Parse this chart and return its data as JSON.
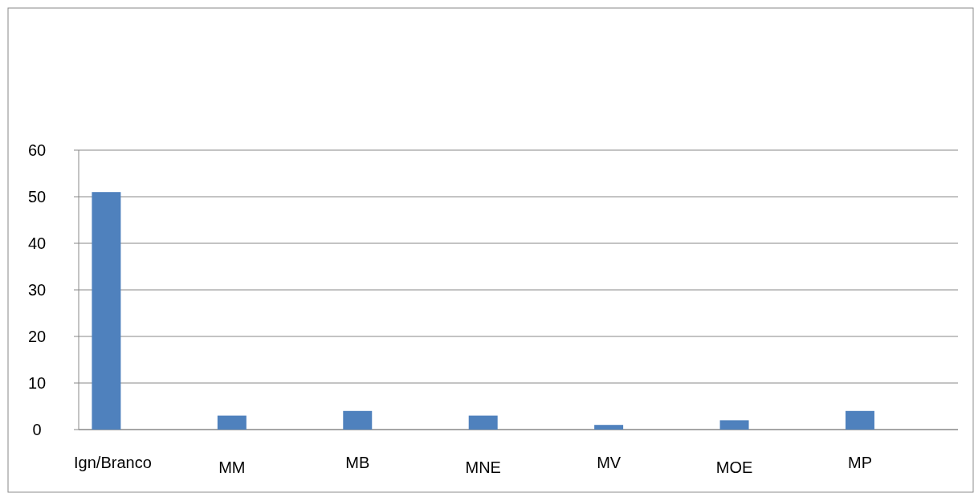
{
  "chart_data": {
    "type": "bar",
    "categories": [
      "Ign/Branco",
      "MM",
      "MB",
      "MNE",
      "MV",
      "MOE",
      "MP"
    ],
    "values": [
      51,
      3,
      4,
      3,
      1,
      2,
      4
    ],
    "color": "#4f81bd",
    "ylim": [
      0,
      60
    ],
    "yticks": [
      0,
      10,
      20,
      30,
      40,
      50,
      60
    ],
    "grid": "y"
  }
}
